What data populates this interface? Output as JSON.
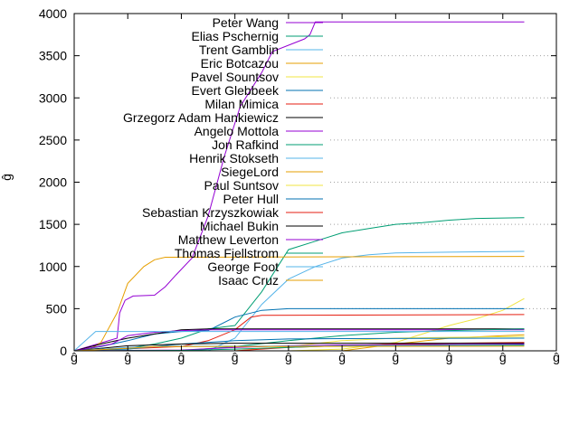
{
  "chart_data": {
    "type": "line",
    "ylabel": "ĝ",
    "ylim": [
      0,
      4000
    ],
    "y_ticks": [
      0,
      500,
      1000,
      1500,
      2000,
      2500,
      3000,
      3500,
      4000
    ],
    "y_tick_labels": [
      "0",
      "500",
      "1000",
      "1500",
      "2000",
      "2500",
      "3000",
      "3500",
      "4000"
    ],
    "xlim": [
      0,
      9
    ],
    "x_ticks": [
      0,
      1,
      2,
      3,
      4,
      5,
      6,
      7,
      8,
      9
    ],
    "x_tick_labels": [
      "ĝ",
      "ĝ",
      "ĝ",
      "ĝ",
      "ĝ",
      "ĝ",
      "ĝ",
      "ĝ",
      "ĝ",
      "ĝ"
    ],
    "grid": "horizontal dotted, right portion",
    "legend_position": "top-left inside",
    "series": [
      {
        "name": "Peter Wang",
        "color": "#9400d3",
        "points": [
          [
            0,
            0
          ],
          [
            0.8,
            150
          ],
          [
            0.85,
            450
          ],
          [
            0.95,
            600
          ],
          [
            1.1,
            650
          ],
          [
            1.5,
            660
          ],
          [
            1.7,
            760
          ],
          [
            1.9,
            900
          ],
          [
            2.2,
            1100
          ],
          [
            2.5,
            1600
          ],
          [
            2.8,
            2300
          ],
          [
            3.1,
            2900
          ],
          [
            3.5,
            3300
          ],
          [
            3.7,
            3550
          ],
          [
            4.3,
            3700
          ],
          [
            4.4,
            3750
          ],
          [
            4.5,
            3900
          ],
          [
            8.4,
            3900
          ]
        ]
      },
      {
        "name": "Elias Pschernig",
        "color": "#009e73",
        "points": [
          [
            0,
            0
          ],
          [
            1,
            30
          ],
          [
            1.5,
            80
          ],
          [
            2,
            150
          ],
          [
            2.5,
            260
          ],
          [
            3,
            300
          ],
          [
            3.5,
            700
          ],
          [
            4,
            1200
          ],
          [
            4.5,
            1300
          ],
          [
            5,
            1400
          ],
          [
            5.5,
            1450
          ],
          [
            6,
            1500
          ],
          [
            6.5,
            1520
          ],
          [
            7,
            1550
          ],
          [
            7.5,
            1570
          ],
          [
            8.4,
            1580
          ]
        ]
      },
      {
        "name": "Trent Gamblin",
        "color": "#56b4e9",
        "points": [
          [
            0,
            0
          ],
          [
            2.5,
            0
          ],
          [
            3,
            150
          ],
          [
            3.5,
            550
          ],
          [
            4,
            850
          ],
          [
            4.5,
            1000
          ],
          [
            5,
            1100
          ],
          [
            5.5,
            1140
          ],
          [
            6,
            1160
          ],
          [
            7,
            1170
          ],
          [
            8.4,
            1180
          ]
        ]
      },
      {
        "name": "Eric Botcazou",
        "color": "#e69f00",
        "points": [
          [
            0,
            0
          ],
          [
            0.3,
            20
          ],
          [
            0.5,
            100
          ],
          [
            0.8,
            450
          ],
          [
            1,
            800
          ],
          [
            1.3,
            1000
          ],
          [
            1.5,
            1080
          ],
          [
            1.7,
            1110
          ],
          [
            8.4,
            1120
          ]
        ]
      },
      {
        "name": "Pavel Sountsov",
        "color": "#f0e442",
        "points": [
          [
            0,
            0
          ],
          [
            4,
            0
          ],
          [
            5,
            20
          ],
          [
            5.5,
            60
          ],
          [
            6,
            100
          ],
          [
            6.5,
            200
          ],
          [
            7,
            300
          ],
          [
            7.5,
            380
          ],
          [
            8,
            480
          ],
          [
            8.4,
            620
          ]
        ]
      },
      {
        "name": "Evert Glebbeek",
        "color": "#0072b2",
        "points": [
          [
            0,
            0
          ],
          [
            0.5,
            50
          ],
          [
            1,
            120
          ],
          [
            1.5,
            200
          ],
          [
            2,
            230
          ],
          [
            2.5,
            240
          ],
          [
            3,
            400
          ],
          [
            3.5,
            480
          ],
          [
            4,
            500
          ],
          [
            8.4,
            500
          ]
        ]
      },
      {
        "name": "Milan Mimica",
        "color": "#e51e10",
        "points": [
          [
            0,
            0
          ],
          [
            2,
            50
          ],
          [
            2.5,
            120
          ],
          [
            3,
            250
          ],
          [
            3.3,
            400
          ],
          [
            3.5,
            420
          ],
          [
            8.4,
            430
          ]
        ]
      },
      {
        "name": "Grzegorz Adam Hankiewicz",
        "color": "#000000",
        "points": [
          [
            0,
            0
          ],
          [
            0.5,
            80
          ],
          [
            1,
            150
          ],
          [
            1.5,
            200
          ],
          [
            2,
            250
          ],
          [
            2.5,
            260
          ],
          [
            8.4,
            260
          ]
        ]
      },
      {
        "name": "Angelo Mottola",
        "color": "#9400d3",
        "points": [
          [
            0,
            0
          ],
          [
            0.7,
            80
          ],
          [
            1,
            180
          ],
          [
            1.5,
            220
          ],
          [
            2,
            240
          ],
          [
            2.5,
            250
          ],
          [
            8.4,
            250
          ]
        ]
      },
      {
        "name": "Jon Rafkind",
        "color": "#009e73",
        "points": [
          [
            0,
            0
          ],
          [
            2,
            0
          ],
          [
            3,
            50
          ],
          [
            4,
            120
          ],
          [
            5,
            180
          ],
          [
            6,
            220
          ],
          [
            7,
            240
          ],
          [
            8.4,
            260
          ]
        ]
      },
      {
        "name": "Henrik Stokseth",
        "color": "#56b4e9",
        "points": [
          [
            0,
            0
          ],
          [
            0.4,
            230
          ],
          [
            1,
            230
          ],
          [
            8.4,
            230
          ]
        ]
      },
      {
        "name": "SiegeLord",
        "color": "#e69f00",
        "points": [
          [
            0,
            0
          ],
          [
            5,
            0
          ],
          [
            6,
            80
          ],
          [
            7,
            150
          ],
          [
            8,
            180
          ],
          [
            8.4,
            190
          ]
        ]
      },
      {
        "name": "Paul Suntsov",
        "color": "#f0e442",
        "points": [
          [
            0,
            0
          ],
          [
            3,
            0
          ],
          [
            4,
            50
          ],
          [
            5,
            120
          ],
          [
            6,
            150
          ],
          [
            7,
            160
          ],
          [
            8.4,
            170
          ]
        ]
      },
      {
        "name": "Peter Hull",
        "color": "#0072b2",
        "points": [
          [
            0,
            0
          ],
          [
            1,
            20
          ],
          [
            2,
            80
          ],
          [
            3,
            120
          ],
          [
            4,
            140
          ],
          [
            5,
            145
          ],
          [
            8.4,
            150
          ]
        ]
      },
      {
        "name": "Sebastian Krzyszkowiak",
        "color": "#e51e10",
        "points": [
          [
            0,
            0
          ],
          [
            3,
            0
          ],
          [
            4,
            40
          ],
          [
            5,
            60
          ],
          [
            6,
            80
          ],
          [
            7,
            90
          ],
          [
            8.4,
            100
          ]
        ]
      },
      {
        "name": "Michael Bukin",
        "color": "#000000",
        "points": [
          [
            0,
            0
          ],
          [
            0.5,
            30
          ],
          [
            1,
            60
          ],
          [
            2,
            80
          ],
          [
            3,
            90
          ],
          [
            8.4,
            90
          ]
        ]
      },
      {
        "name": "Matthew Leverton",
        "color": "#9400d3",
        "points": [
          [
            0,
            0
          ],
          [
            2,
            10
          ],
          [
            3,
            40
          ],
          [
            4,
            60
          ],
          [
            5,
            70
          ],
          [
            8.4,
            80
          ]
        ]
      },
      {
        "name": "Thomas Fjellstrom",
        "color": "#009e73",
        "points": [
          [
            0,
            0
          ],
          [
            2,
            5
          ],
          [
            3,
            20
          ],
          [
            4,
            40
          ],
          [
            5,
            60
          ],
          [
            8.4,
            70
          ]
        ]
      },
      {
        "name": "George Foot",
        "color": "#56b4e9",
        "points": [
          [
            0,
            0
          ],
          [
            0.5,
            20
          ],
          [
            1,
            40
          ],
          [
            2,
            55
          ],
          [
            8.4,
            60
          ]
        ]
      },
      {
        "name": "Isaac Cruz",
        "color": "#e69f00",
        "points": [
          [
            0,
            0
          ],
          [
            1,
            30
          ],
          [
            1.5,
            50
          ],
          [
            8.4,
            55
          ]
        ]
      }
    ]
  }
}
